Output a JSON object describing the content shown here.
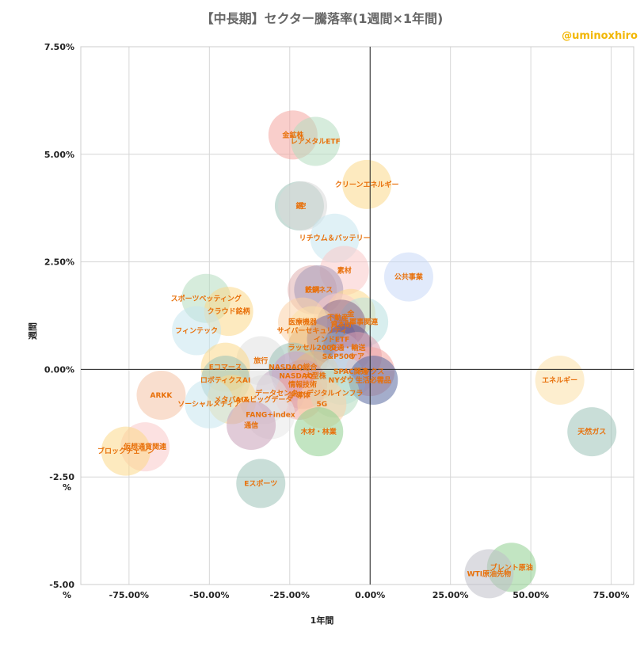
{
  "chart_data": {
    "type": "scatter",
    "title": "【中長期】セクター騰落率(1週間×1年間)",
    "xlabel": "1年間",
    "ylabel": "週間",
    "watermark": "@uminoxhiro",
    "xlim": [
      -90,
      82
    ],
    "ylim": [
      -5.0,
      7.5
    ],
    "x_ticks": [
      "-75.00%",
      "-50.00%",
      "-25.00%",
      "0.00%",
      "25.00%",
      "50.00%",
      "75.00%"
    ],
    "y_ticks": [
      "7.50%",
      "5.00%",
      "2.50%",
      "0.00%",
      "-2.50\n%",
      "-5.00\n%"
    ],
    "grid": true,
    "label_color": "#e8700a",
    "points": [
      {
        "label": "金鉱株",
        "x": -24,
        "y": 5.45,
        "color": "#f4a5a0"
      },
      {
        "label": "レアメタルETF",
        "x": -17,
        "y": 5.3,
        "color": "#b5dcc0"
      },
      {
        "label": "クリーンエネルギー",
        "x": -1,
        "y": 4.3,
        "color": "#fbd98a"
      },
      {
        "label": "銅",
        "x": -22,
        "y": 3.8,
        "color": "#9cc2b8"
      },
      {
        "label": "空",
        "x": -21,
        "y": 3.8,
        "color": "#d9d9d9"
      },
      {
        "label": "リチウム＆バッテリー",
        "x": -11,
        "y": 3.05,
        "color": "#c7e6ee"
      },
      {
        "label": "素材",
        "x": -8,
        "y": 2.3,
        "color": "#f9c8c8"
      },
      {
        "label": "公共事業",
        "x": 12,
        "y": 2.15,
        "color": "#c9d9f7"
      },
      {
        "label": "鉄鋼",
        "x": -18,
        "y": 1.85,
        "color": "#e0b0b0"
      },
      {
        "label": "ビジネス",
        "x": -16,
        "y": 1.85,
        "color": "#a89bb8"
      },
      {
        "label": "スポーツベッティング",
        "x": -51,
        "y": 1.65,
        "color": "#b5dcc0"
      },
      {
        "label": "クラウド銘柄",
        "x": -44,
        "y": 1.35,
        "color": "#fbd98a"
      },
      {
        "label": "金",
        "x": -6,
        "y": 1.3,
        "color": "#fbd98a"
      },
      {
        "label": "不動産",
        "x": -10,
        "y": 1.2,
        "color": "#f9c8c8"
      },
      {
        "label": "軍事関連",
        "x": -2,
        "y": 1.1,
        "color": "#b8e0e0"
      },
      {
        "label": "資本財",
        "x": -9,
        "y": 1.05,
        "color": "#8a6a8a"
      },
      {
        "label": "医療機器",
        "x": -21,
        "y": 1.1,
        "color": "#fbd2a8"
      },
      {
        "label": "サイバーセキュリティ",
        "x": -18,
        "y": 0.9,
        "color": "#fbe0a8"
      },
      {
        "label": "フィンテック",
        "x": -54,
        "y": 0.9,
        "color": "#c7e6ee"
      },
      {
        "label": "インドETF",
        "x": -12,
        "y": 0.7,
        "color": "#7a6aa0"
      },
      {
        "label": "ラッセル2000",
        "x": -18,
        "y": 0.5,
        "color": "#e8b880"
      },
      {
        "label": "交通・輸送",
        "x": -7,
        "y": 0.5,
        "color": "#6a5a8a"
      },
      {
        "label": "S&P500",
        "x": -10,
        "y": 0.3,
        "color": "#9ab0c8"
      },
      {
        "label": "ケア",
        "x": -4,
        "y": 0.3,
        "color": "#e0a0b0"
      },
      {
        "label": "旅行",
        "x": -34,
        "y": 0.2,
        "color": "#e0e0e0"
      },
      {
        "label": "Eコマース",
        "x": -45,
        "y": 0.05,
        "color": "#fbd98a"
      },
      {
        "label": "NASDAQ総合",
        "x": -24,
        "y": 0.05,
        "color": "#9cc2b8"
      },
      {
        "label": "SPAC関連",
        "x": -6,
        "y": -0.05,
        "color": "#c9d9f7"
      },
      {
        "label": "トックス",
        "x": 0,
        "y": -0.05,
        "color": "#f4a5a0"
      },
      {
        "label": "NASDAQ",
        "x": -23,
        "y": -0.15,
        "color": "#c8a0c8"
      },
      {
        "label": "大型株",
        "x": -17,
        "y": -0.15,
        "color": "#e8b880"
      },
      {
        "label": "NYダウ",
        "x": -9,
        "y": -0.25,
        "color": "#c7e6ee"
      },
      {
        "label": "生活必需品",
        "x": 1,
        "y": -0.25,
        "color": "#5a6aa0"
      },
      {
        "label": "ロボティクスAI",
        "x": -45,
        "y": -0.25,
        "color": "#9cc2b8"
      },
      {
        "label": "情報技術",
        "x": -21,
        "y": -0.35,
        "color": "#d0a0a0"
      },
      {
        "label": "ARKK",
        "x": -65,
        "y": -0.6,
        "color": "#f4c3a5"
      },
      {
        "label": "データセンター",
        "x": -28,
        "y": -0.55,
        "color": "#c8b0c8"
      },
      {
        "label": "半導体",
        "x": -22,
        "y": -0.6,
        "color": "#f4a5a0"
      },
      {
        "label": "デジタルインフラ",
        "x": -11,
        "y": -0.55,
        "color": "#b5dcc0"
      },
      {
        "label": "AI&ビッグデータ",
        "x": -33,
        "y": -0.7,
        "color": "#e0e0e0"
      },
      {
        "label": "メタバース",
        "x": -43,
        "y": -0.7,
        "color": "#fbd98a"
      },
      {
        "label": "ソーシャルメディア",
        "x": -50,
        "y": -0.8,
        "color": "#c7e6ee"
      },
      {
        "label": "5G",
        "x": -15,
        "y": -0.8,
        "color": "#fbd2a8"
      },
      {
        "label": "FANG+index",
        "x": -31,
        "y": -1.05,
        "color": "#e8e8e8"
      },
      {
        "label": "通信",
        "x": -37,
        "y": -1.3,
        "color": "#c8a0b8"
      },
      {
        "label": "木材・林業",
        "x": -16,
        "y": -1.45,
        "color": "#8fd08f"
      },
      {
        "label": "エネルギー",
        "x": 59,
        "y": -0.25,
        "color": "#fbe0a8"
      },
      {
        "label": "天然ガス",
        "x": 69,
        "y": -1.45,
        "color": "#9cc2b8"
      },
      {
        "label": "仮想通貨関連",
        "x": -70,
        "y": -1.8,
        "color": "#f9c8c8"
      },
      {
        "label": "ブロックチェーン",
        "x": -76,
        "y": -1.9,
        "color": "#fbd98a"
      },
      {
        "label": "Eスポーツ",
        "x": -34,
        "y": -2.65,
        "color": "#9cc2b8"
      },
      {
        "label": "ブレント原油",
        "x": 44,
        "y": -4.6,
        "color": "#8fd08f"
      },
      {
        "label": "WTI原油先物",
        "x": 37,
        "y": -4.75,
        "color": "#c0c0c8"
      }
    ]
  }
}
